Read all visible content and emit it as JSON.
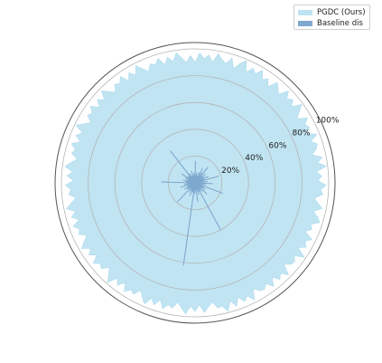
{
  "chart_data": {
    "type": "radar",
    "radial_axis": {
      "range": [
        0,
        100
      ],
      "unit": "%",
      "ticks": [
        20,
        40,
        60,
        80,
        100
      ],
      "tick_labels": [
        "20%",
        "40%",
        "60%",
        "80%",
        "100%"
      ]
    },
    "grid": true,
    "legend_position": "top-right",
    "series": [
      {
        "name": "PGDC (Ours)",
        "color": "#bde3f2",
        "style": "filled-area",
        "approx_range": [
          88,
          99
        ],
        "values": [
          90,
          97,
          93,
          96,
          91,
          98,
          94,
          92,
          97,
          90,
          95,
          99,
          91,
          96,
          93,
          98,
          92,
          95,
          90,
          97,
          94,
          91,
          98,
          93,
          96,
          92,
          99,
          94,
          90,
          97,
          93,
          95,
          91,
          98,
          92,
          96,
          94,
          90,
          97,
          93,
          99,
          91,
          95,
          92,
          98,
          94,
          96,
          90,
          93,
          97,
          91,
          95,
          98,
          92,
          94,
          90,
          97,
          93,
          96,
          91,
          99,
          92,
          95,
          94,
          90,
          98,
          93,
          96,
          91,
          97,
          92,
          95,
          94,
          90,
          98,
          93,
          96,
          91,
          97,
          92,
          99,
          94,
          95,
          90,
          93,
          97,
          91,
          96,
          92,
          98,
          94,
          90,
          95,
          93,
          97,
          91,
          96,
          92,
          98,
          94,
          90,
          95,
          93,
          97,
          91,
          96,
          92,
          99,
          94,
          90,
          95,
          93,
          97,
          91,
          96,
          92,
          98,
          94,
          90,
          95,
          93,
          97,
          91,
          96,
          92,
          98,
          94,
          90,
          95,
          93,
          97,
          91,
          96,
          92,
          98,
          94,
          90,
          95,
          93,
          97,
          91,
          96,
          92,
          99,
          94,
          90,
          95,
          93,
          97,
          91,
          96,
          92,
          98,
          94,
          90,
          95,
          93,
          97,
          91,
          96,
          92,
          98,
          94,
          90,
          95,
          93,
          97,
          91,
          96,
          92,
          98,
          94,
          90,
          95
        ]
      },
      {
        "name": "Baseline dis",
        "color": "#7fa9cf",
        "style": "spiky-line",
        "values": [
          3,
          5,
          2,
          8,
          4,
          12,
          3,
          6,
          2,
          9,
          4,
          15,
          3,
          7,
          2,
          5,
          10,
          3,
          6,
          2,
          8,
          4,
          3,
          11,
          5,
          2,
          7,
          3,
          18,
          4,
          2,
          6,
          3,
          9,
          5,
          2,
          4,
          13,
          3,
          6,
          2,
          8,
          4,
          2,
          5,
          3,
          22,
          4,
          2,
          7,
          3,
          5,
          9,
          2,
          4,
          6,
          3,
          12,
          2,
          5,
          3,
          8,
          4,
          2,
          6,
          3,
          40,
          5,
          2,
          7,
          3,
          9,
          4,
          2,
          5,
          3,
          14,
          6,
          2,
          4,
          3,
          8,
          5,
          2,
          62,
          4,
          3,
          7,
          2,
          5,
          3,
          10,
          4,
          2,
          6,
          3,
          8,
          5,
          2,
          4,
          3,
          19,
          6,
          2,
          5,
          3,
          7,
          4,
          2,
          9,
          3,
          5,
          2,
          6,
          3,
          4,
          11,
          2,
          5,
          3,
          8,
          4,
          2,
          6,
          3,
          25,
          5,
          2,
          7,
          3,
          4,
          9,
          2,
          5,
          3,
          6,
          4,
          2,
          8,
          3,
          5,
          12,
          2,
          4,
          3,
          7,
          5,
          2,
          6,
          3,
          30,
          4,
          2,
          8,
          3,
          5,
          4,
          2,
          6,
          3,
          9,
          5,
          2,
          4,
          3,
          7,
          2,
          5,
          3,
          16,
          4,
          2,
          6,
          3,
          8,
          5,
          2
        ]
      }
    ]
  }
}
